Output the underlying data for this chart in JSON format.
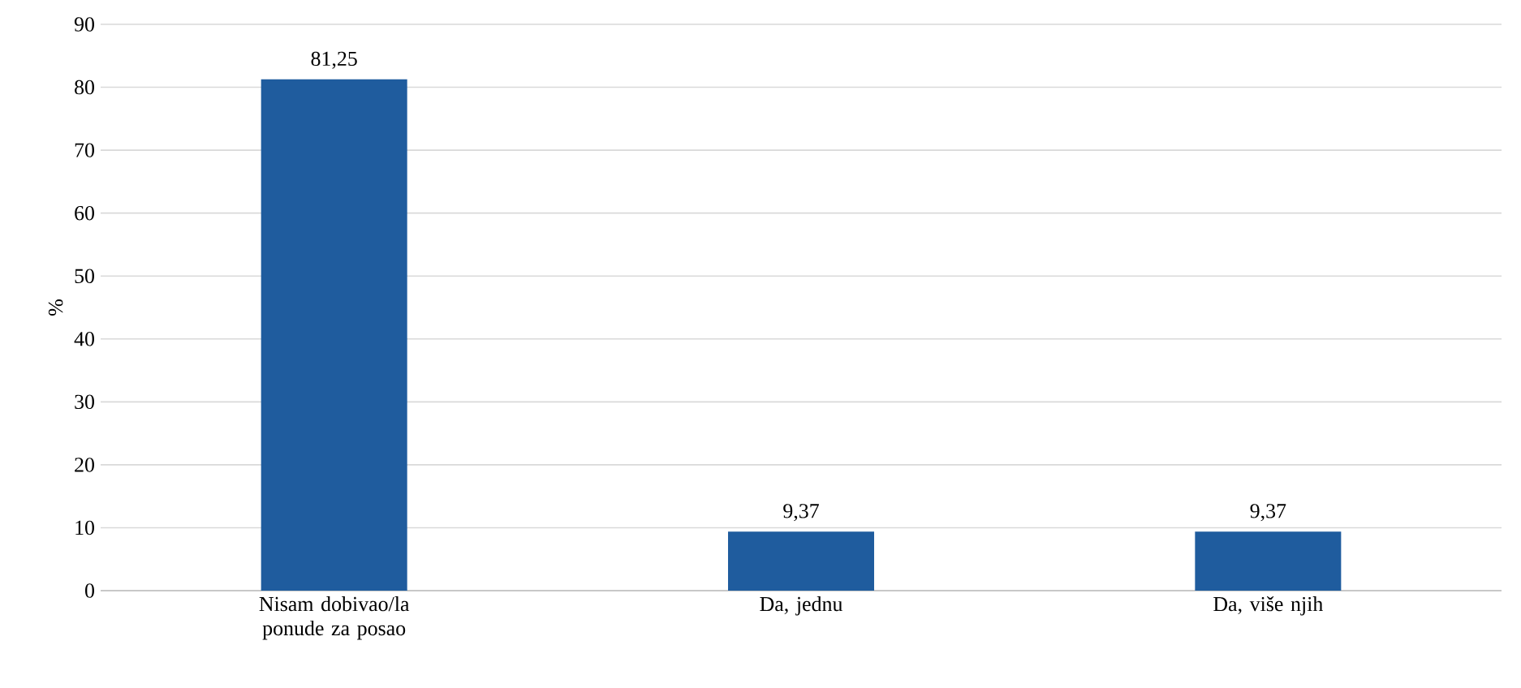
{
  "chart_data": {
    "type": "bar",
    "ylabel": "%",
    "categories": [
      "Nisam dobivao/la ponude za posao",
      "Da, jednu",
      "Da, više njih"
    ],
    "values": [
      81.25,
      9.37,
      9.37
    ],
    "value_labels": [
      "81,25",
      "9,37",
      "9,37"
    ],
    "color": "#1f5c9e",
    "ylim": [
      0,
      90
    ],
    "yticks": [
      0,
      10,
      20,
      30,
      40,
      50,
      60,
      70,
      80,
      90
    ],
    "grid": "y"
  }
}
